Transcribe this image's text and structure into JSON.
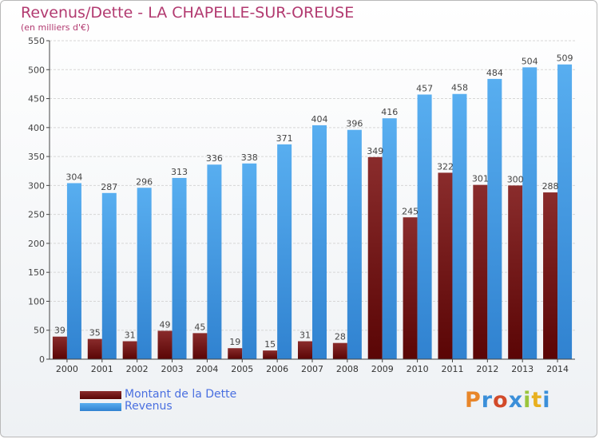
{
  "title": "Revenus/Dette - LA CHAPELLE-SUR-OREUSE",
  "subtitle": "(en milliers d'€)",
  "logo": {
    "text": "Proxiti",
    "colors": [
      "#e8862a",
      "#3b8fd9",
      "#d24a2a",
      "#3b8fd9",
      "#9bc53d",
      "#e8b020",
      "#3b8fd9"
    ]
  },
  "colors": {
    "debt": "#7a1818",
    "revenue": "#4a9fe8",
    "title": "#b23a70",
    "legend_text": "#4a6fe0"
  },
  "chart_data": {
    "type": "bar",
    "categories": [
      "2000",
      "2001",
      "2002",
      "2003",
      "2004",
      "2005",
      "2006",
      "2007",
      "2008",
      "2009",
      "2010",
      "2011",
      "2012",
      "2013",
      "2014"
    ],
    "series": [
      {
        "name": "Montant de la Dette",
        "values": [
          39,
          35,
          31,
          49,
          45,
          19,
          15,
          31,
          28,
          349,
          245,
          322,
          301,
          300,
          288
        ]
      },
      {
        "name": "Revenus",
        "values": [
          304,
          287,
          296,
          313,
          336,
          338,
          371,
          404,
          396,
          416,
          457,
          458,
          484,
          504,
          509
        ]
      }
    ],
    "ylim": [
      0,
      550
    ],
    "yticks": [
      0,
      50,
      100,
      150,
      200,
      250,
      300,
      350,
      400,
      450,
      500,
      550
    ],
    "grid": true,
    "legend": "bottom-left"
  }
}
